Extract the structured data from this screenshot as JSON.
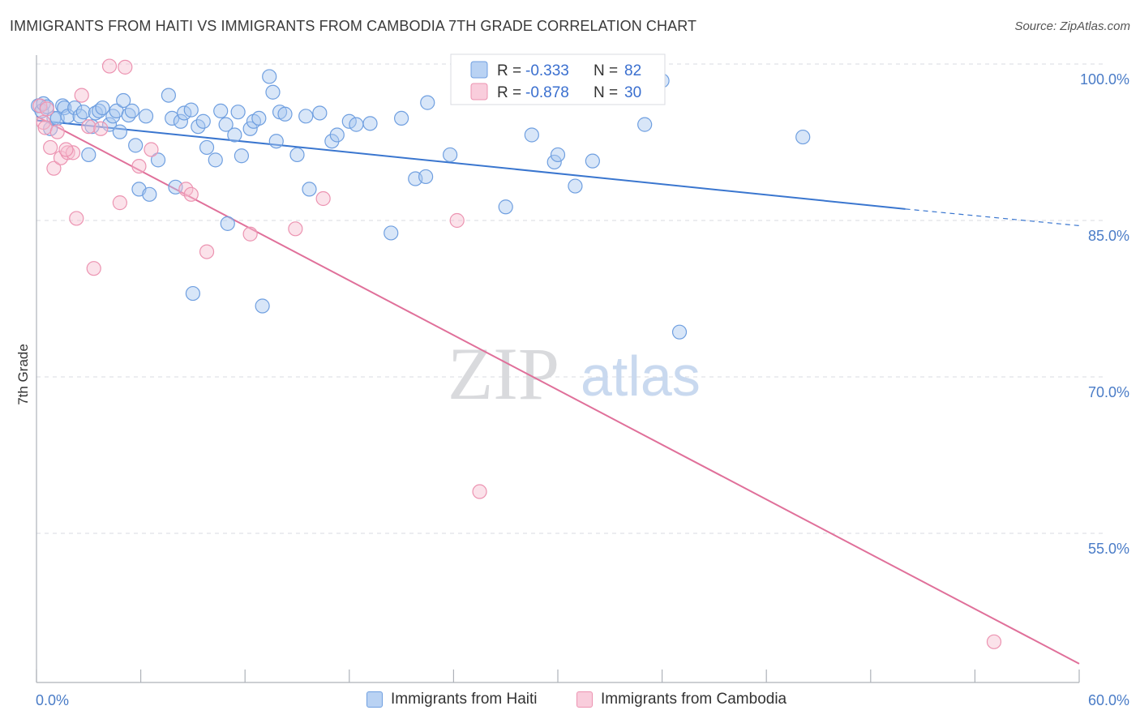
{
  "title": "IMMIGRANTS FROM HAITI VS IMMIGRANTS FROM CAMBODIA 7TH GRADE CORRELATION CHART",
  "source": "Source: ZipAtlas.com",
  "watermark": {
    "zip": "ZIP",
    "atlas": "atlas"
  },
  "colors": {
    "haiti_fill": "#a9c8f0",
    "haiti_stroke": "#6f9fe0",
    "haiti_line": "#3a76cf",
    "cambodia_fill": "#f7bfd1",
    "cambodia_stroke": "#ec93b1",
    "cambodia_line": "#e0709a",
    "tick_label": "#4a7cc7",
    "grid": "#d8dbe2"
  },
  "legend": {
    "rows": [
      {
        "r_label": "R =",
        "r_value": "-0.333",
        "n_label": "N =",
        "n_value": "82"
      },
      {
        "r_label": "R =",
        "r_value": "-0.878",
        "n_label": "N =",
        "n_value": "30"
      }
    ]
  },
  "bottom_legend": {
    "haiti": "Immigrants from Haiti",
    "cambodia": "Immigrants from Cambodia"
  },
  "chart_data": {
    "type": "scatter",
    "title": "IMMIGRANTS FROM HAITI VS IMMIGRANTS FROM CAMBODIA 7TH GRADE CORRELATION CHART",
    "xlabel": "",
    "ylabel": "7th Grade",
    "xlim": [
      0,
      60
    ],
    "ylim": [
      40,
      100
    ],
    "x_ticks": [
      "0.0%",
      "60.0%"
    ],
    "y_ticks": [
      {
        "value": 100,
        "label": "100.0%"
      },
      {
        "value": 85,
        "label": "85.0%"
      },
      {
        "value": 70,
        "label": "70.0%"
      },
      {
        "value": 55,
        "label": "55.0%"
      }
    ],
    "grid": true,
    "legend_placement": "top-center",
    "series": [
      {
        "name": "Immigrants from Haiti",
        "r": -0.333,
        "n": 82,
        "trend": {
          "x0": 0,
          "y0": 94.6,
          "x1": 50,
          "y1": 86.1,
          "dashed_to": 60,
          "dashed_y": 84.5
        },
        "points": [
          [
            0.1,
            96.0
          ],
          [
            0.3,
            95.5
          ],
          [
            0.4,
            96.2
          ],
          [
            0.6,
            95.9
          ],
          [
            0.8,
            93.8
          ],
          [
            1.0,
            94.8
          ],
          [
            1.2,
            94.8
          ],
          [
            1.5,
            96.0
          ],
          [
            1.6,
            95.8
          ],
          [
            1.8,
            95.0
          ],
          [
            2.2,
            95.8
          ],
          [
            2.5,
            95.0
          ],
          [
            2.7,
            95.4
          ],
          [
            3.0,
            91.3
          ],
          [
            3.2,
            94.0
          ],
          [
            3.4,
            95.3
          ],
          [
            3.6,
            95.5
          ],
          [
            3.8,
            95.8
          ],
          [
            4.2,
            94.2
          ],
          [
            4.4,
            95.0
          ],
          [
            4.6,
            95.5
          ],
          [
            4.8,
            93.5
          ],
          [
            5.0,
            96.5
          ],
          [
            5.3,
            95.1
          ],
          [
            5.5,
            95.5
          ],
          [
            5.7,
            92.2
          ],
          [
            5.9,
            88.0
          ],
          [
            6.3,
            95.0
          ],
          [
            6.5,
            87.5
          ],
          [
            7.0,
            90.8
          ],
          [
            7.6,
            97.0
          ],
          [
            7.8,
            94.8
          ],
          [
            8.0,
            88.2
          ],
          [
            8.3,
            94.5
          ],
          [
            8.5,
            95.3
          ],
          [
            8.9,
            95.6
          ],
          [
            9.0,
            78.0
          ],
          [
            9.3,
            94.0
          ],
          [
            9.6,
            94.5
          ],
          [
            9.8,
            92.0
          ],
          [
            10.3,
            90.8
          ],
          [
            10.6,
            95.5
          ],
          [
            10.9,
            94.2
          ],
          [
            11.0,
            84.7
          ],
          [
            11.4,
            93.2
          ],
          [
            11.6,
            95.4
          ],
          [
            11.8,
            91.2
          ],
          [
            12.3,
            93.8
          ],
          [
            12.5,
            94.5
          ],
          [
            12.8,
            94.8
          ],
          [
            13.0,
            76.8
          ],
          [
            13.6,
            97.3
          ],
          [
            13.8,
            92.6
          ],
          [
            14.0,
            95.4
          ],
          [
            14.3,
            95.2
          ],
          [
            15.0,
            91.3
          ],
          [
            15.5,
            95.0
          ],
          [
            15.7,
            88.0
          ],
          [
            16.3,
            95.3
          ],
          [
            17.0,
            92.6
          ],
          [
            17.3,
            93.2
          ],
          [
            18.0,
            94.5
          ],
          [
            18.4,
            94.2
          ],
          [
            19.2,
            94.3
          ],
          [
            20.4,
            83.8
          ],
          [
            21.0,
            94.8
          ],
          [
            21.8,
            89.0
          ],
          [
            22.4,
            89.2
          ],
          [
            22.5,
            96.3
          ],
          [
            23.8,
            91.3
          ],
          [
            27.0,
            86.3
          ],
          [
            29.8,
            90.6
          ],
          [
            30.0,
            91.3
          ],
          [
            31.0,
            88.3
          ],
          [
            32.0,
            90.7
          ],
          [
            35.6,
            100.0
          ],
          [
            36.0,
            98.4
          ],
          [
            35.0,
            94.2
          ],
          [
            37.0,
            74.3
          ],
          [
            44.1,
            93.0
          ],
          [
            13.4,
            98.8
          ],
          [
            28.5,
            93.2
          ]
        ]
      },
      {
        "name": "Immigrants from Cambodia",
        "r": -0.878,
        "n": 30,
        "trend": {
          "x0": 0,
          "y0": 95.0,
          "x1": 60,
          "y1": 42.5
        },
        "points": [
          [
            0.2,
            96.0
          ],
          [
            0.4,
            94.4
          ],
          [
            0.5,
            93.9
          ],
          [
            0.6,
            95.7
          ],
          [
            0.8,
            92.0
          ],
          [
            1.0,
            90.0
          ],
          [
            1.2,
            93.5
          ],
          [
            1.4,
            91.0
          ],
          [
            1.8,
            91.5
          ],
          [
            2.1,
            91.5
          ],
          [
            2.3,
            85.2
          ],
          [
            2.6,
            97.0
          ],
          [
            3.0,
            94.0
          ],
          [
            3.3,
            80.4
          ],
          [
            3.7,
            93.8
          ],
          [
            4.2,
            99.8
          ],
          [
            4.8,
            86.7
          ],
          [
            5.1,
            99.7
          ],
          [
            5.9,
            90.2
          ],
          [
            6.6,
            91.8
          ],
          [
            8.6,
            88.0
          ],
          [
            8.9,
            87.5
          ],
          [
            9.8,
            82.0
          ],
          [
            12.3,
            83.7
          ],
          [
            14.9,
            84.2
          ],
          [
            16.5,
            87.1
          ],
          [
            24.2,
            85.0
          ],
          [
            25.5,
            59.0
          ],
          [
            55.1,
            44.6
          ],
          [
            1.7,
            91.8
          ]
        ]
      }
    ]
  }
}
